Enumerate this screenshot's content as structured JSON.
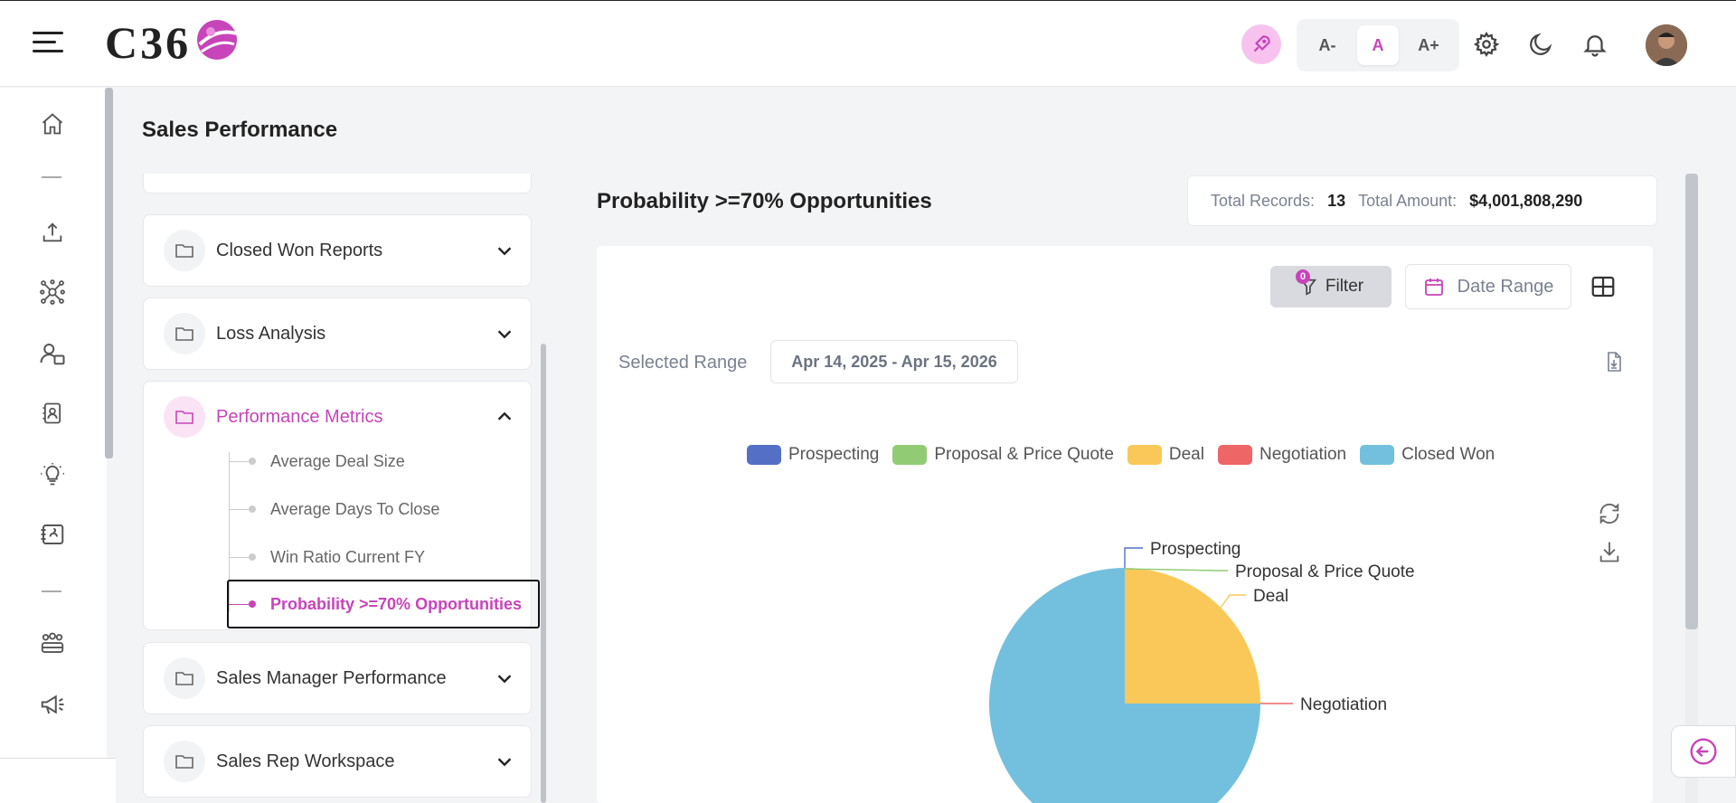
{
  "app": {
    "logo_text": "C36"
  },
  "header": {
    "font_small": "A-",
    "font_normal": "A",
    "font_large": "A+"
  },
  "page": {
    "title": "Sales Performance"
  },
  "menu": {
    "groups": [
      {
        "label": "Closed Won Reports",
        "expanded": false
      },
      {
        "label": "Loss Analysis",
        "expanded": false
      },
      {
        "label": "Performance Metrics",
        "expanded": true,
        "items": [
          {
            "label": "Average Deal Size"
          },
          {
            "label": "Average Days To Close"
          },
          {
            "label": "Win Ratio Current FY"
          },
          {
            "label": "Probability >=70% Opportunities",
            "active": true
          }
        ]
      },
      {
        "label": "Sales Manager Performance",
        "expanded": false
      },
      {
        "label": "Sales Rep Workspace",
        "expanded": false
      }
    ]
  },
  "report": {
    "title": "Probability >=70% Opportunities",
    "total_records_label": "Total Records:",
    "total_records": "13",
    "total_amount_label": "Total Amount:",
    "total_amount": "$4,001,808,290",
    "filter_label": "Filter",
    "filter_count": "0",
    "date_range_label": "Date Range",
    "selected_range_label": "Selected Range",
    "selected_range": "Apr 14, 2025 - Apr 15, 2026"
  },
  "colors": {
    "accent": "#c744b9",
    "prospecting": "#5470c6",
    "proposal": "#91cc75",
    "deal": "#fac858",
    "negotiation": "#ee6666",
    "closed_won": "#73c0de"
  },
  "chart_data": {
    "type": "pie",
    "legend_position": "top",
    "series": [
      {
        "name": "Prospecting",
        "value": 0,
        "color": "#5470c6"
      },
      {
        "name": "Proposal & Price Quote",
        "value": 0,
        "color": "#91cc75"
      },
      {
        "name": "Deal",
        "value": 25,
        "color": "#fac858"
      },
      {
        "name": "Negotiation",
        "value": 0,
        "color": "#ee6666"
      },
      {
        "name": "Closed Won",
        "value": 75,
        "color": "#73c0de"
      }
    ]
  }
}
